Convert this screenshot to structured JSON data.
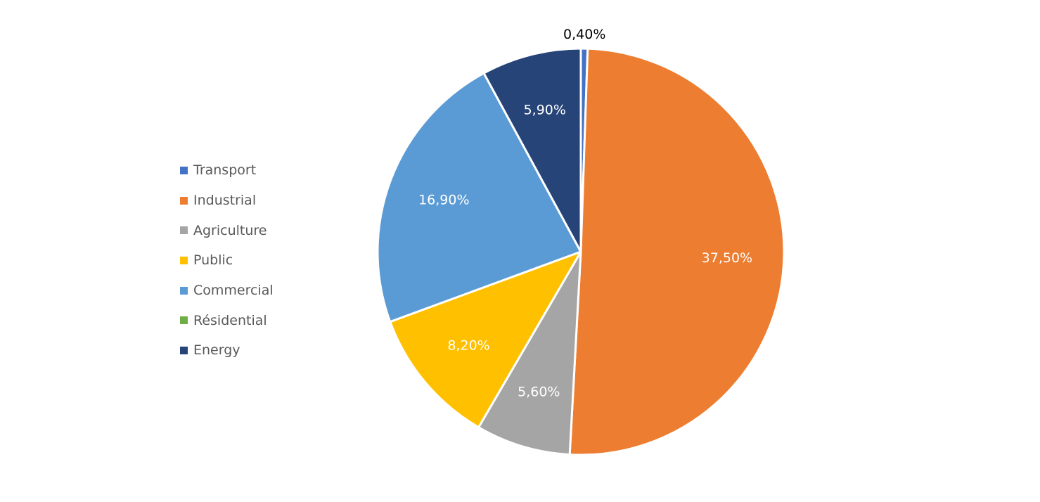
{
  "chart_data": {
    "type": "pie",
    "title": "",
    "categories": [
      "Transport",
      "Industrial",
      "Agriculture",
      "Public",
      "Commercial",
      "Résidential",
      "Energy"
    ],
    "values": [
      0.4,
      37.5,
      5.6,
      8.2,
      16.9,
      0,
      5.9
    ],
    "labels": [
      "0,40%",
      "37,50%",
      "5,60%",
      "8,20%",
      "16,90%",
      "",
      "5,90%"
    ],
    "colors": [
      "#4472C4",
      "#ED7D31",
      "#A5A5A5",
      "#FFC000",
      "#5B9BD5",
      "#70AD47",
      "#264478"
    ],
    "legend_position": "left",
    "start_angle": 0,
    "direction": "clockwise"
  },
  "legend": {
    "items": [
      {
        "label": "Transport",
        "color": "#4472C4"
      },
      {
        "label": "Industrial",
        "color": "#ED7D31"
      },
      {
        "label": "Agriculture",
        "color": "#A5A5A5"
      },
      {
        "label": "Public",
        "color": "#FFC000"
      },
      {
        "label": "Commercial",
        "color": "#5B9BD5"
      },
      {
        "label": "Résidential",
        "color": "#70AD47"
      },
      {
        "label": "Energy",
        "color": "#264478"
      }
    ]
  }
}
